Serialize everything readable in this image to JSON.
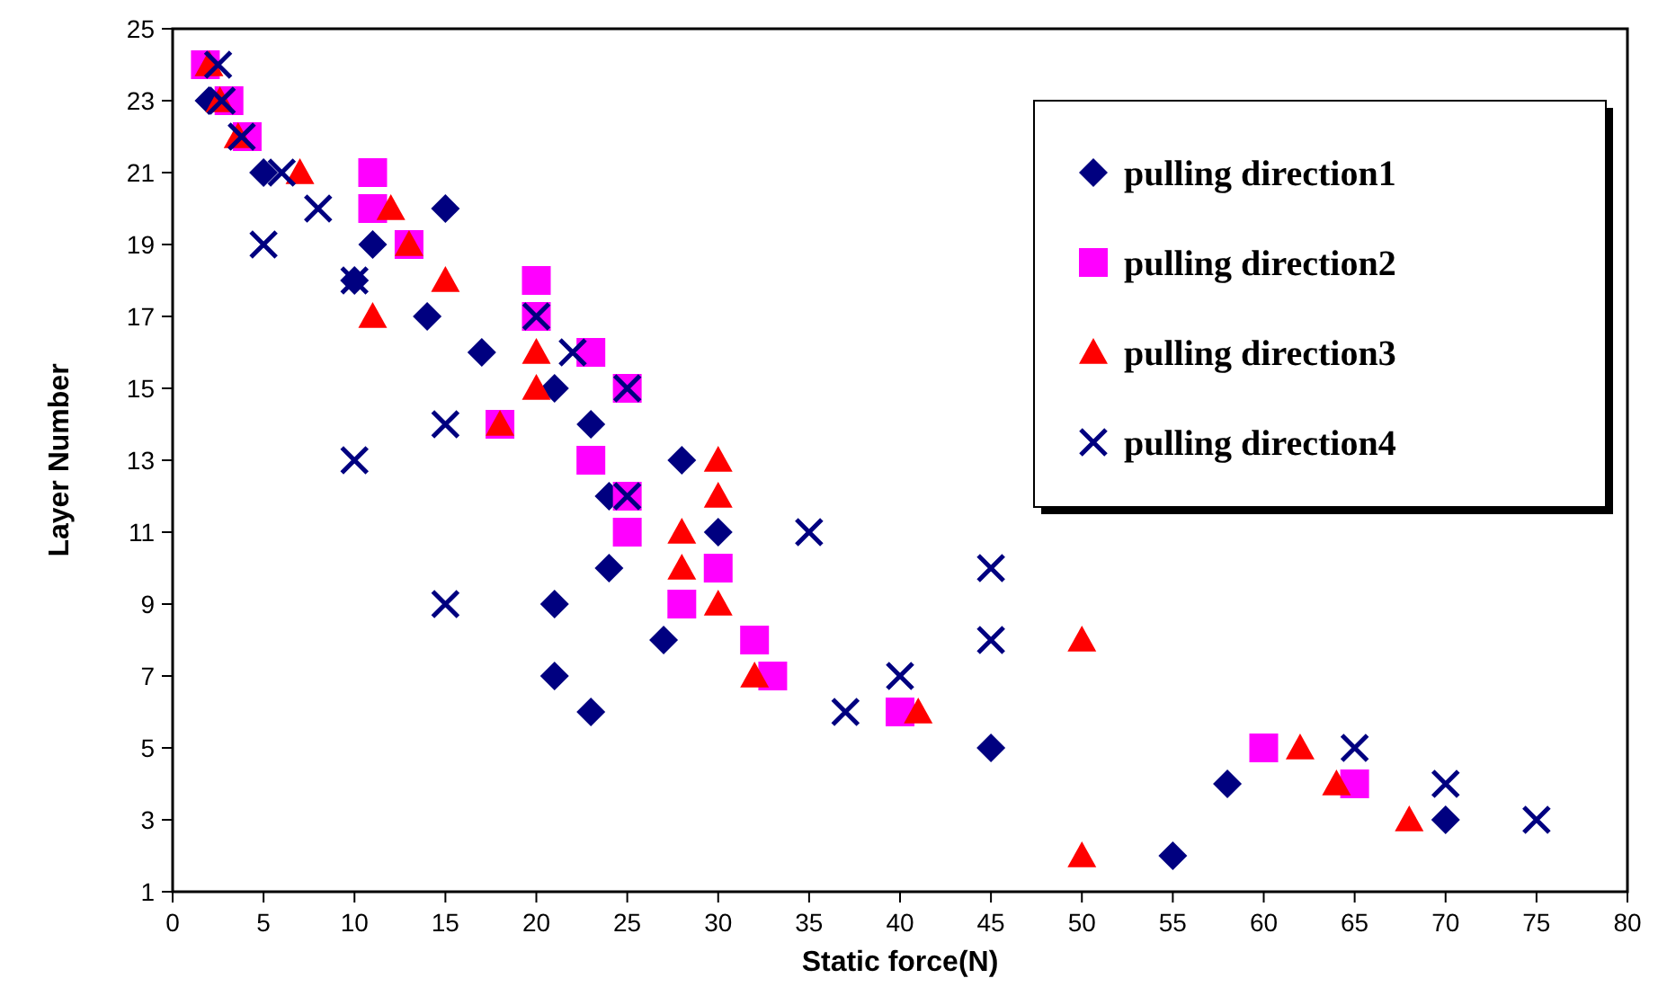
{
  "chart_data": {
    "type": "scatter",
    "xlabel": "Static force(N)",
    "ylabel": "Layer Number",
    "xlim": [
      0,
      80
    ],
    "xticks": [
      0,
      5,
      10,
      15,
      20,
      25,
      30,
      35,
      40,
      45,
      50,
      55,
      60,
      65,
      70,
      75,
      80
    ],
    "ylim": [
      1,
      25
    ],
    "yticks": [
      1,
      3,
      5,
      7,
      9,
      11,
      13,
      15,
      17,
      19,
      21,
      23,
      25
    ],
    "grid": false,
    "legend": "top right",
    "series": [
      {
        "name": "pulling direction1",
        "color": "#000080",
        "marker": "diamond",
        "x": [
          2,
          5,
          11,
          15,
          10,
          14,
          17,
          21,
          23,
          28,
          24,
          30,
          24,
          21,
          27,
          21,
          23,
          45,
          58,
          70,
          55
        ],
        "values": [
          23,
          21,
          19,
          20,
          18,
          17,
          16,
          15,
          14,
          13,
          12,
          11,
          10,
          9,
          8,
          7,
          6,
          5,
          4,
          3,
          2
        ]
      },
      {
        "name": "pulling direction2",
        "color": "#ff00ff",
        "marker": "square",
        "x": [
          1.8,
          3.1,
          4.1,
          11,
          11,
          13,
          20,
          20,
          23,
          25,
          18,
          23,
          25,
          25,
          30,
          28,
          32,
          33,
          40,
          60,
          65
        ],
        "values": [
          24,
          23,
          22,
          21,
          20,
          19,
          18,
          17,
          16,
          15,
          14,
          13,
          12,
          11,
          10,
          9,
          8,
          7,
          6,
          5,
          4
        ]
      },
      {
        "name": "pulling direction3",
        "color": "#ff0000",
        "marker": "triangle",
        "x": [
          2,
          2.6,
          3.6,
          7,
          12,
          13,
          15,
          11,
          20,
          20,
          18,
          30,
          30,
          28,
          28,
          30,
          50,
          32,
          41,
          62,
          64,
          68,
          50
        ],
        "values": [
          24,
          23,
          22,
          21,
          20,
          19,
          18,
          17,
          16,
          15,
          14,
          13,
          12,
          11,
          10,
          9,
          8,
          7,
          6,
          5,
          4,
          3,
          2
        ]
      },
      {
        "name": "pulling direction4",
        "color": "#000080",
        "marker": "cross",
        "x": [
          2.5,
          2.7,
          3.8,
          6,
          8,
          5,
          10,
          20,
          22,
          25,
          15,
          10,
          25,
          35,
          45,
          15,
          45,
          40,
          37,
          65,
          70,
          75
        ],
        "values": [
          24,
          23,
          22,
          21,
          20,
          19,
          18,
          17,
          16,
          15,
          14,
          13,
          12,
          11,
          10,
          9,
          8,
          7,
          6,
          5,
          4,
          3
        ]
      }
    ]
  }
}
